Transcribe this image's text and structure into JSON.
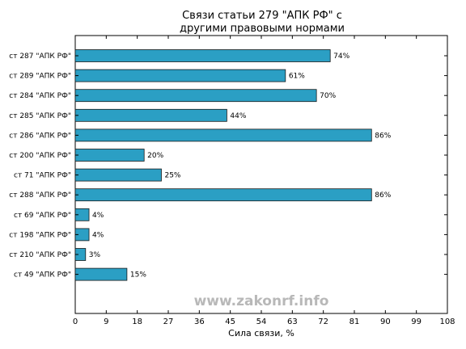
{
  "chart_data": {
    "type": "bar",
    "orientation": "horizontal",
    "title": [
      "Связи статьи 279 \"АПК РФ\" с",
      "другими правовыми нормами"
    ],
    "xlabel": "Сила связи, %",
    "ylabel": "",
    "categories": [
      "ст 287 \"АПК РФ\"",
      "ст 289 \"АПК РФ\"",
      "ст 284 \"АПК РФ\"",
      "ст 285 \"АПК РФ\"",
      "ст 286 \"АПК РФ\"",
      "ст 200 \"АПК РФ\"",
      "ст 71 \"АПК РФ\"",
      "ст 288 \"АПК РФ\"",
      "ст 69 \"АПК РФ\"",
      "ст 198 \"АПК РФ\"",
      "ст 210 \"АПК РФ\"",
      "ст 49 \"АПК РФ\""
    ],
    "values": [
      74,
      61,
      70,
      44,
      86,
      20,
      25,
      86,
      4,
      4,
      3,
      15
    ],
    "value_labels": [
      "74%",
      "61%",
      "70%",
      "44%",
      "86%",
      "20%",
      "25%",
      "86%",
      "4%",
      "4%",
      "3%",
      "15%"
    ],
    "xlim": [
      0,
      108
    ],
    "xticks": [
      0,
      9,
      18,
      27,
      36,
      45,
      54,
      63,
      72,
      81,
      90,
      99,
      108
    ],
    "grid": false,
    "bar_color": "#2b9fc4",
    "watermark": "www.zakonrf.info"
  }
}
